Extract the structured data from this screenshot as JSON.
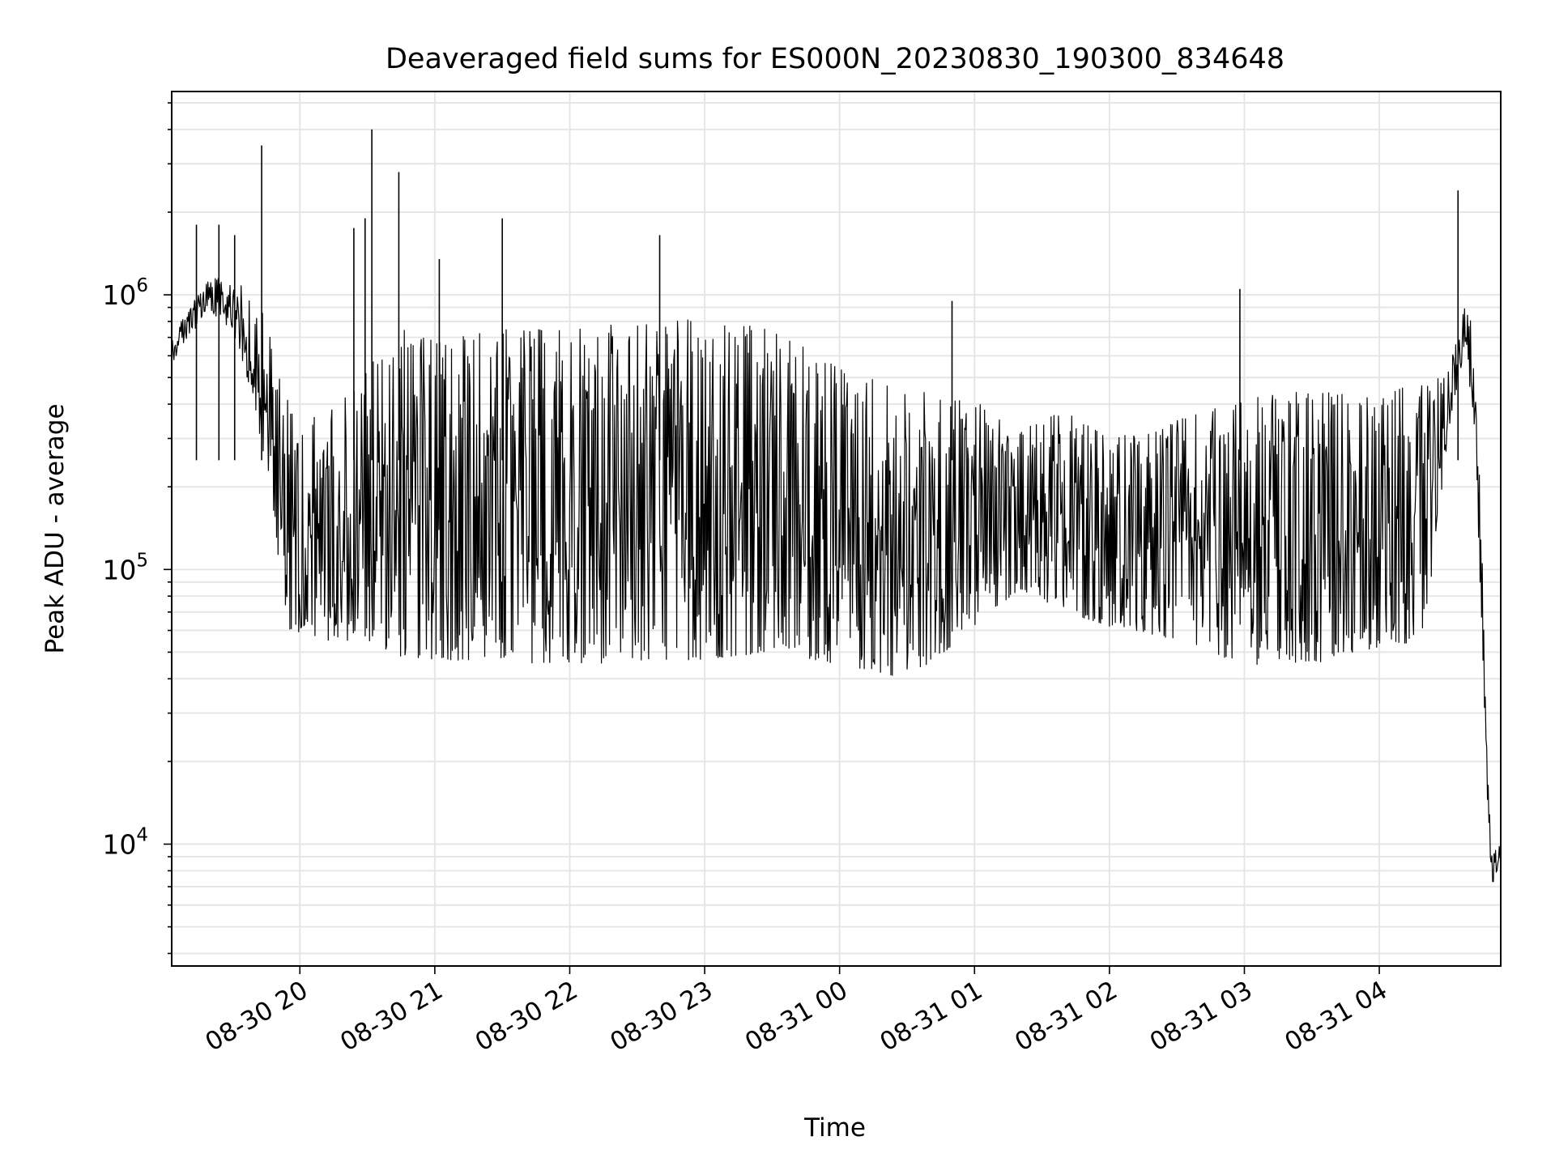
{
  "chart_data": {
    "type": "line",
    "title": "Deaveraged field sums for ES000N_20230830_190300_834648",
    "xlabel": "Time",
    "ylabel": "Peak ADU - average",
    "yscale": "log",
    "ylim": [
      3600,
      5500000
    ],
    "xlim": [
      "2023-08-30 19:03",
      "2023-08-31 04:54"
    ],
    "grid": true,
    "x_ticks": [
      "08-30 20",
      "08-30 21",
      "08-30 22",
      "08-30 23",
      "08-31 00",
      "08-31 01",
      "08-31 02",
      "08-31 03",
      "08-31 04"
    ],
    "y_ticks": [
      {
        "base": "10",
        "exp": "4",
        "value": 10000
      },
      {
        "base": "10",
        "exp": "5",
        "value": 100000
      },
      {
        "base": "10",
        "exp": "6",
        "value": 1000000
      }
    ],
    "line_color": "#000000",
    "grid_color": "#e6e6e6",
    "series": [
      {
        "x": [
          "2023-08-30 19:03",
          "2023-08-30 19:10",
          "2023-08-30 19:20",
          "2023-08-30 19:30",
          "2023-08-30 19:40",
          "2023-08-30 19:48",
          "2023-08-30 19:55",
          "2023-08-30 20:10",
          "2023-08-30 20:30",
          "2023-08-30 20:45",
          "2023-08-30 21:00",
          "2023-08-30 21:30",
          "2023-08-30 22:00",
          "2023-08-30 22:30",
          "2023-08-30 23:00",
          "2023-08-30 23:30",
          "2023-08-31 00:00",
          "2023-08-31 00:30",
          "2023-08-31 01:00",
          "2023-08-31 01:20",
          "2023-08-31 01:40",
          "2023-08-31 02:00",
          "2023-08-31 02:30",
          "2023-08-31 03:00",
          "2023-08-31 03:30",
          "2023-08-31 04:00",
          "2023-08-31 04:20",
          "2023-08-31 04:30",
          "2023-08-31 04:38",
          "2023-08-31 04:42",
          "2023-08-31 04:46",
          "2023-08-31 04:48",
          "2023-08-31 04:50",
          "2023-08-31 04:54"
        ],
        "low": [
          560000,
          700000,
          850000,
          750000,
          400000,
          150000,
          60000,
          55000,
          55000,
          48000,
          47000,
          46000,
          45000,
          46000,
          47000,
          50000,
          45000,
          40000,
          60000,
          85000,
          70000,
          62000,
          55000,
          45000,
          45000,
          52000,
          55000,
          280000,
          650000,
          350000,
          50000,
          15000,
          7000,
          8500
        ],
        "high": [
          700000,
          900000,
          1150000,
          1150000,
          1000000,
          700000,
          400000,
          350000,
          550000,
          750000,
          700000,
          750000,
          750000,
          800000,
          820000,
          750000,
          550000,
          450000,
          420000,
          320000,
          380000,
          300000,
          350000,
          420000,
          450000,
          420000,
          500000,
          500000,
          900000,
          800000,
          110000,
          20000,
          9500,
          10000
        ]
      }
    ],
    "spikes": [
      {
        "x": "2023-08-30 19:14",
        "y": 1800000
      },
      {
        "x": "2023-08-30 19:24",
        "y": 1800000
      },
      {
        "x": "2023-08-30 19:31",
        "y": 1650000
      },
      {
        "x": "2023-08-30 19:43",
        "y": 3500000
      },
      {
        "x": "2023-08-30 20:24",
        "y": 1750000
      },
      {
        "x": "2023-08-30 20:29",
        "y": 1900000
      },
      {
        "x": "2023-08-30 20:32",
        "y": 4000000
      },
      {
        "x": "2023-08-30 20:44",
        "y": 2800000
      },
      {
        "x": "2023-08-30 21:02",
        "y": 1350000
      },
      {
        "x": "2023-08-30 21:30",
        "y": 1900000
      },
      {
        "x": "2023-08-30 22:40",
        "y": 1650000
      },
      {
        "x": "2023-08-31 00:50",
        "y": 950000
      },
      {
        "x": "2023-08-31 02:58",
        "y": 1050000
      },
      {
        "x": "2023-08-31 04:35",
        "y": 2400000
      }
    ]
  }
}
